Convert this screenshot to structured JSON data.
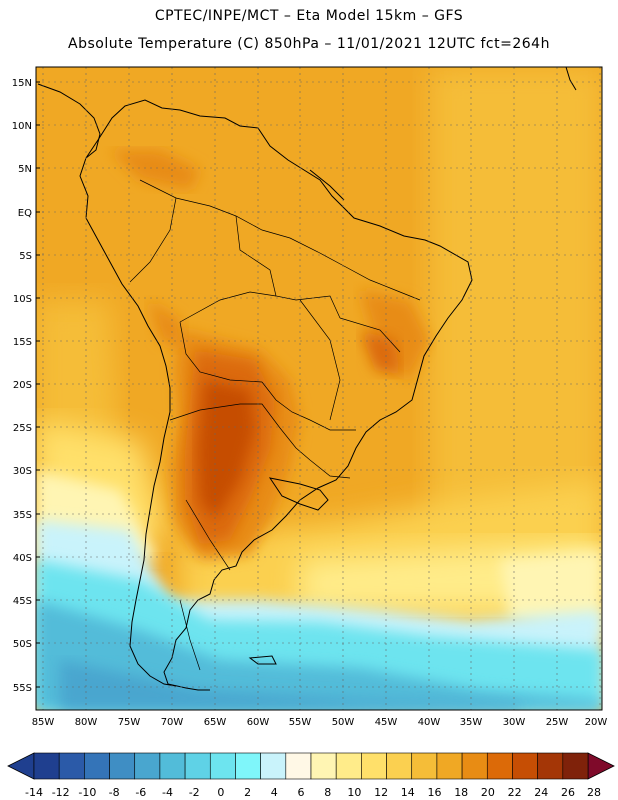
{
  "header": {
    "line1": "CPTEC/INPE/MCT –  Eta Model 15km – GFS",
    "line2": "Absolute Temperature (C) 850hPa – 11/01/2021 12UTC fct=264h"
  },
  "axes": {
    "lat_labels": [
      "15N",
      "10N",
      "5N",
      "EQ",
      "5S",
      "10S",
      "15S",
      "20S",
      "25S",
      "30S",
      "35S",
      "40S",
      "45S",
      "50S",
      "55S"
    ],
    "lon_labels": [
      "85W",
      "80W",
      "75W",
      "70W",
      "65W",
      "60W",
      "55W",
      "50W",
      "45W",
      "40W",
      "35W",
      "30W",
      "25W",
      "20W"
    ]
  },
  "colorbar": {
    "labels": [
      "-14",
      "-12",
      "-10",
      "-8",
      "-6",
      "-4",
      "-2",
      "0",
      "2",
      "4",
      "6",
      "8",
      "10",
      "12",
      "14",
      "16",
      "18",
      "20",
      "22",
      "24",
      "26",
      "28"
    ],
    "colors": [
      "#1f3f8f",
      "#2b5aa8",
      "#3474b8",
      "#3f8ec4",
      "#49a6cf",
      "#52bcd9",
      "#5fd2e6",
      "#6de4ef",
      "#7ff6fa",
      "#c9f3fb",
      "#fff8e6",
      "#fff5b3",
      "#ffec8a",
      "#ffe06a",
      "#fbd050",
      "#f5bd38",
      "#f0a824",
      "#e88c14",
      "#dc6a08",
      "#c64e04",
      "#a43606",
      "#7f220a"
    ]
  }
}
